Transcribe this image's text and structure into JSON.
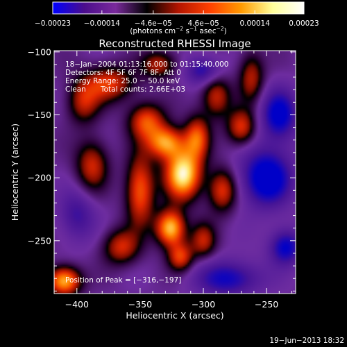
{
  "chart_data": {
    "type": "heatmap",
    "title": "Reconstructed RHESSI Image",
    "xlabel": "Heliocentric X (arcsec)",
    "ylabel": "Heliocentric Y (arcsec)",
    "xlim": [
      -418,
      -227
    ],
    "ylim": [
      -292,
      -99
    ],
    "x_ticks": [
      -400,
      -350,
      -300,
      -250
    ],
    "x_tick_labels": [
      "−400",
      "−350",
      "−300",
      "−250"
    ],
    "y_ticks": [
      -100,
      -150,
      -200,
      -250
    ],
    "y_tick_labels": [
      "−100",
      "−150",
      "−200",
      "−250"
    ],
    "colorbar": {
      "range": [
        -0.00023,
        0.00023
      ],
      "ticks": [
        -0.00023,
        -0.00014,
        -4.6e-05,
        4.6e-05,
        0.00014,
        0.00023
      ],
      "tick_labels": [
        "−0.00023",
        "−0.00014",
        "−4.6e−05",
        "4.6e−05",
        "0.00014",
        "0.00023"
      ],
      "units_prefix": "(photons cm",
      "units_exp1": "−2",
      "units_mid": " s",
      "units_exp2": "−1",
      "units_mid2": " asec",
      "units_exp3": "−2",
      "units_suffix": ")",
      "colors": [
        "#0000ff",
        "#4b0d8c",
        "#7a2a9c",
        "#000000",
        "#b31500",
        "#ff4000",
        "#ff9a00",
        "#ffff9a",
        "#ffffff"
      ]
    },
    "annotations": {
      "time_range": "18−Jan−2004 01:13:16.000 to 01:15:40.000",
      "detectors": "Detectors: 4F 5F 6F 7F 8F, Att 0",
      "energy": "Energy Range: 25.0 − 50.0 keV",
      "algorithm": "Clean",
      "total_counts": "Total counts: 2.66E+03",
      "peak": "Position of Peak = [−316,−197]"
    },
    "peak": [
      -316,
      -197
    ],
    "sources": [
      {
        "x": -316,
        "y": -197,
        "amp": 1.0,
        "sx": 10,
        "sy": 14
      },
      {
        "x": -330,
        "y": -172,
        "amp": 0.75,
        "sx": 10,
        "sy": 9
      },
      {
        "x": -305,
        "y": -168,
        "amp": 0.6,
        "sx": 7,
        "sy": 12
      },
      {
        "x": -326,
        "y": -240,
        "amp": 0.9,
        "sx": 8,
        "sy": 10
      },
      {
        "x": -318,
        "y": -263,
        "amp": 0.55,
        "sx": 7,
        "sy": 8
      },
      {
        "x": -350,
        "y": -210,
        "amp": 0.65,
        "sx": 8,
        "sy": 20
      },
      {
        "x": -345,
        "y": -155,
        "amp": 0.6,
        "sx": 10,
        "sy": 10
      },
      {
        "x": -375,
        "y": -125,
        "amp": 0.55,
        "sx": 14,
        "sy": 10
      },
      {
        "x": -395,
        "y": -140,
        "amp": 0.45,
        "sx": 9,
        "sy": 12
      },
      {
        "x": -388,
        "y": -190,
        "amp": 0.5,
        "sx": 9,
        "sy": 14
      },
      {
        "x": -365,
        "y": -255,
        "amp": 0.5,
        "sx": 10,
        "sy": 10
      },
      {
        "x": -410,
        "y": -282,
        "amp": 0.85,
        "sx": 9,
        "sy": 8
      },
      {
        "x": -290,
        "y": -135,
        "amp": 0.5,
        "sx": 8,
        "sy": 12
      },
      {
        "x": -285,
        "y": -210,
        "amp": 0.55,
        "sx": 8,
        "sy": 12
      },
      {
        "x": -262,
        "y": -120,
        "amp": 0.45,
        "sx": 7,
        "sy": 14
      },
      {
        "x": -270,
        "y": -160,
        "amp": 0.55,
        "sx": 8,
        "sy": 10
      },
      {
        "x": -300,
        "y": -250,
        "amp": 0.45,
        "sx": 7,
        "sy": 10
      },
      {
        "x": -335,
        "y": -110,
        "amp": 0.45,
        "sx": 10,
        "sy": 8
      },
      {
        "x": -250,
        "y": -200,
        "amp": -0.7,
        "sx": 14,
        "sy": 16
      },
      {
        "x": -240,
        "y": -150,
        "amp": -0.6,
        "sx": 10,
        "sy": 14
      },
      {
        "x": -280,
        "y": -280,
        "amp": -0.5,
        "sx": 18,
        "sy": 10
      },
      {
        "x": -300,
        "y": -115,
        "amp": -0.45,
        "sx": 10,
        "sy": 8
      },
      {
        "x": -235,
        "y": -255,
        "amp": -0.55,
        "sx": 9,
        "sy": 10
      },
      {
        "x": -400,
        "y": -230,
        "amp": -0.35,
        "sx": 10,
        "sy": 14
      }
    ],
    "grid": false,
    "legend": "none"
  },
  "footer": {
    "timestamp": "19−Jun−2013 18:32"
  }
}
